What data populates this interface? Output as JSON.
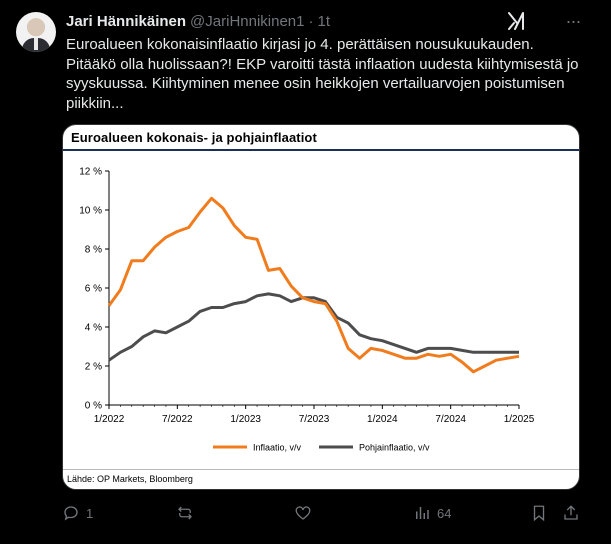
{
  "tweet": {
    "author_name": "Jari Hännikäinen",
    "handle": "@JariHnnikinen1",
    "separator": "·",
    "time": "1t",
    "text": "Euroalueen kokonaisinflaatio kirjasi jo 4. perättäisen nousukuukauden. Pitääkö olla huolissaan?! EKP varoitti tästä inflaation uudesta kiihtymisestä jo syyskuussa. Kiihtyminen menee osin heikkojen vertailuarvojen poistumisen piikkiin..."
  },
  "icons": {
    "grok": "grok-icon",
    "more": "more-icon",
    "reply": "reply-icon",
    "retweet": "retweet-icon",
    "like": "like-icon",
    "views": "views-icon",
    "bookmark": "bookmark-icon",
    "share": "share-icon"
  },
  "actions": {
    "reply_count": "1",
    "views_count": "64"
  },
  "chart_data": {
    "type": "line",
    "title": "Euroalueen kokonais- ja pohjainflaatiot",
    "source": "Lähde: OP Markets, Bloomberg",
    "y_tick_labels": [
      "0 %",
      "2 %",
      "4 %",
      "6 %",
      "8 %",
      "10 %",
      "12 %"
    ],
    "ylim": [
      0,
      12
    ],
    "x_tick_labels": [
      "1/2022",
      "7/2022",
      "1/2023",
      "7/2023",
      "1/2024",
      "7/2024",
      "1/2025"
    ],
    "x_range": [
      "1/2022",
      "1/2025"
    ],
    "grid": false,
    "legend_position": "bottom",
    "series": [
      {
        "name": "Inflaatio, v/v",
        "color": "#f07c1e",
        "values": [
          5.1,
          5.9,
          7.4,
          7.4,
          8.1,
          8.6,
          8.9,
          9.1,
          9.9,
          10.6,
          10.1,
          9.2,
          8.6,
          8.5,
          6.9,
          7.0,
          6.1,
          5.5,
          5.3,
          5.2,
          4.3,
          2.9,
          2.4,
          2.9,
          2.8,
          2.6,
          2.4,
          2.4,
          2.6,
          2.5,
          2.6,
          2.2,
          1.7,
          2.0,
          2.3,
          2.4,
          2.5
        ]
      },
      {
        "name": "Pohjainflaatio, v/v",
        "color": "#4d4d4d",
        "values": [
          2.3,
          2.7,
          3.0,
          3.5,
          3.8,
          3.7,
          4.0,
          4.3,
          4.8,
          5.0,
          5.0,
          5.2,
          5.3,
          5.6,
          5.7,
          5.6,
          5.3,
          5.5,
          5.5,
          5.3,
          4.5,
          4.2,
          3.6,
          3.4,
          3.3,
          3.1,
          2.9,
          2.7,
          2.9,
          2.9,
          2.9,
          2.8,
          2.7,
          2.7,
          2.7,
          2.7,
          2.7
        ]
      }
    ]
  }
}
